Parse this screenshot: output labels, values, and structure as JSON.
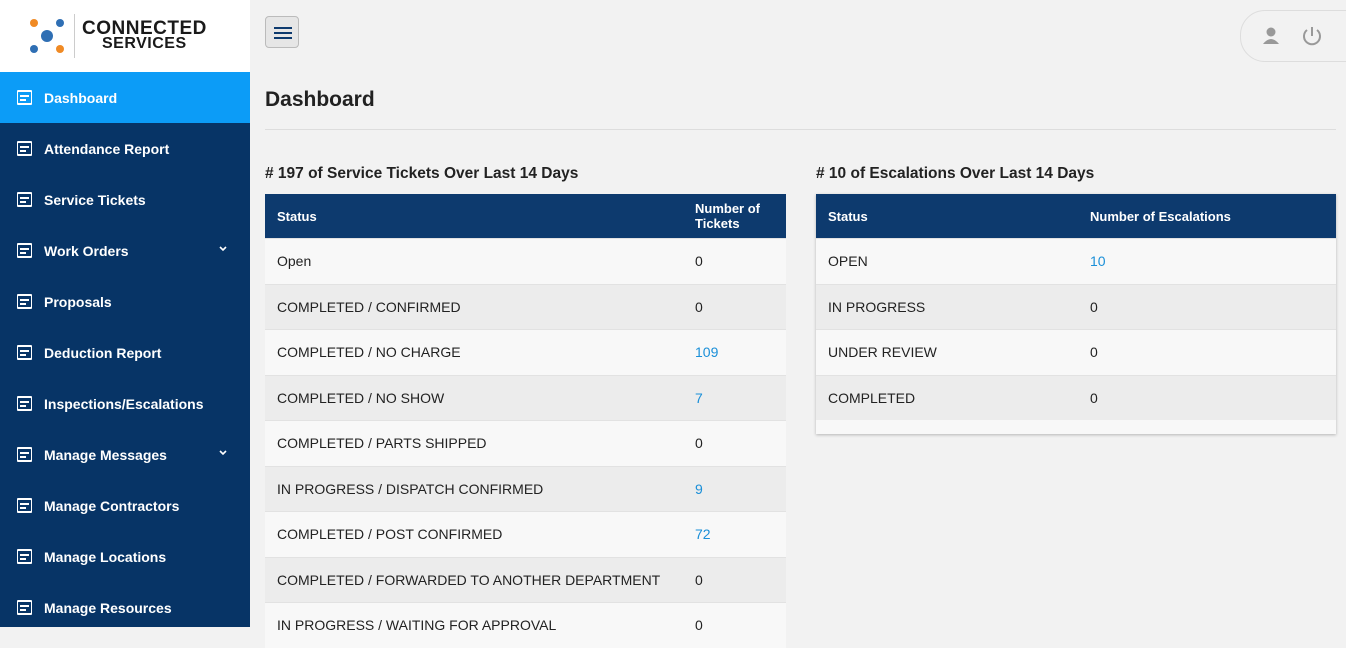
{
  "logo": {
    "line1": "CONNECTED",
    "line2": "SERVICES"
  },
  "sidebar": {
    "items": [
      {
        "label": "Dashboard",
        "active": true
      },
      {
        "label": "Attendance Report"
      },
      {
        "label": "Service Tickets"
      },
      {
        "label": "Work Orders",
        "expandable": true
      },
      {
        "label": "Proposals"
      },
      {
        "label": "Deduction Report"
      },
      {
        "label": "Inspections/Escalations"
      },
      {
        "label": "Manage Messages",
        "expandable": true
      },
      {
        "label": "Manage Contractors"
      },
      {
        "label": "Manage Locations"
      },
      {
        "label": "Manage Resources"
      }
    ]
  },
  "header": {
    "title": "Dashboard"
  },
  "tickets": {
    "title": "# 197 of Service Tickets Over Last 14 Days",
    "columns": [
      "Status",
      "Number of Tickets"
    ],
    "rows": [
      [
        "Open",
        0
      ],
      [
        "COMPLETED / CONFIRMED",
        0
      ],
      [
        "COMPLETED / NO CHARGE",
        109
      ],
      [
        "COMPLETED / NO SHOW",
        7
      ],
      [
        "COMPLETED / PARTS SHIPPED",
        0
      ],
      [
        "IN PROGRESS / DISPATCH CONFIRMED",
        9
      ],
      [
        "COMPLETED / POST CONFIRMED",
        72
      ],
      [
        "COMPLETED / FORWARDED TO ANOTHER DEPARTMENT",
        0
      ],
      [
        "IN PROGRESS / WAITING FOR APPROVAL",
        0
      ]
    ]
  },
  "escalations": {
    "title": "# 10 of Escalations Over Last 14 Days",
    "columns": [
      "Status",
      "Number of Escalations"
    ],
    "rows": [
      [
        "OPEN",
        10
      ],
      [
        "IN PROGRESS",
        0
      ],
      [
        "UNDER REVIEW",
        0
      ],
      [
        "COMPLETED",
        0
      ]
    ]
  }
}
